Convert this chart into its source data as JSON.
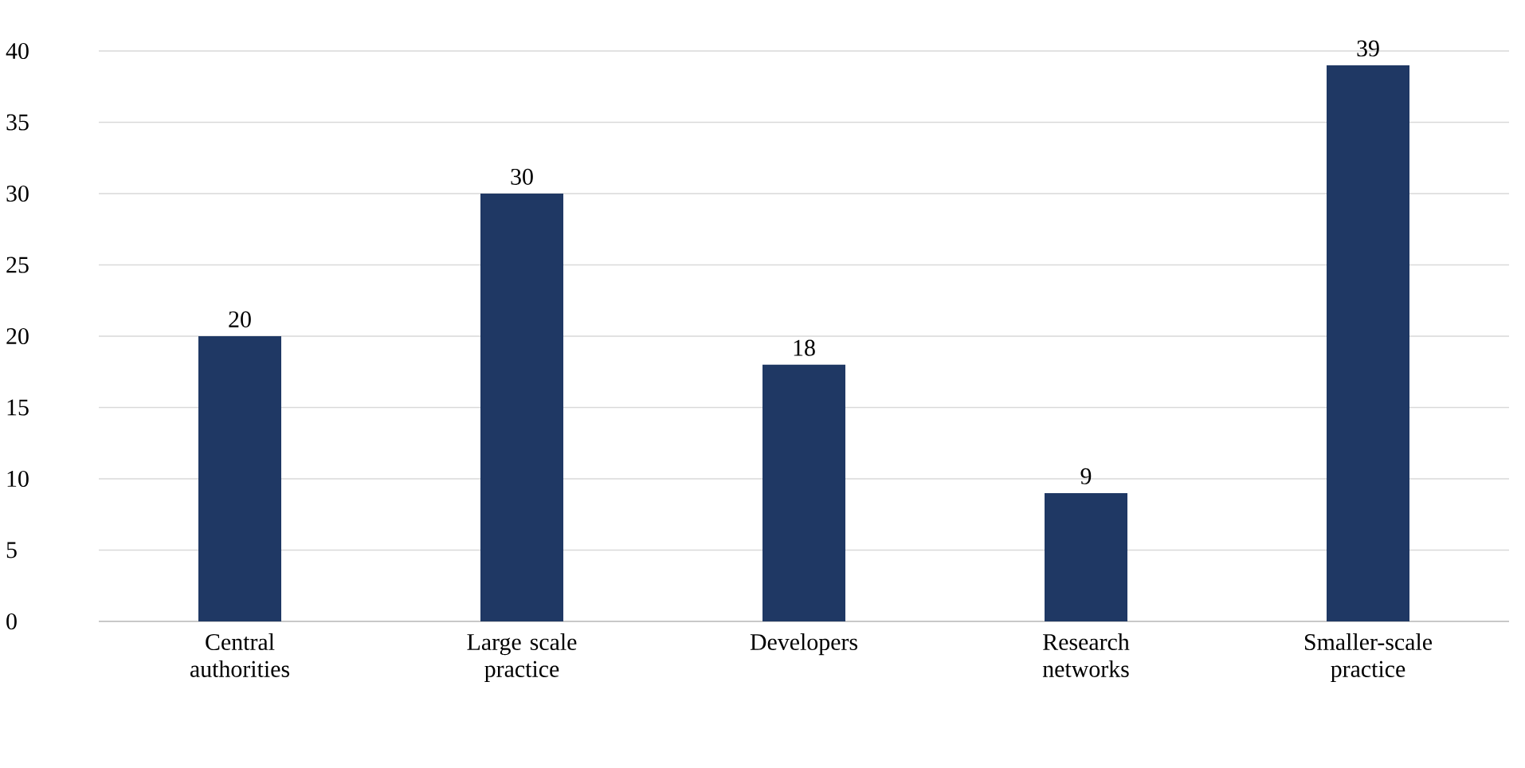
{
  "chart_data": {
    "type": "bar",
    "categories": [
      "Central authorities",
      "Large scale practice",
      "Developers",
      "Research networks",
      "Smaller-scale practice"
    ],
    "values": [
      20,
      30,
      18,
      9,
      39
    ],
    "color": "#1f3864",
    "ylim": [
      0,
      40
    ],
    "yticks": [
      0,
      5,
      10,
      15,
      20,
      25,
      30,
      35,
      40
    ],
    "grid": "y",
    "data_labels": true
  }
}
